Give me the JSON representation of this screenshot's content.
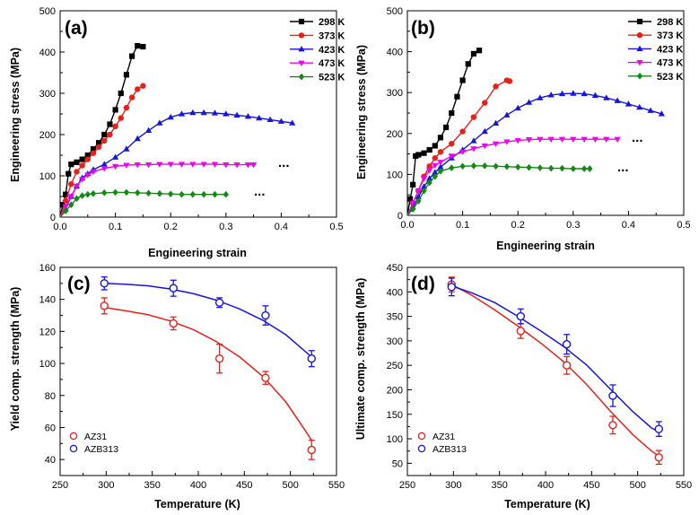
{
  "colors": {
    "k298": "#000000",
    "k373": "#e8201a",
    "k423": "#1515e0",
    "k473": "#f000f0",
    "k523": "#108a10",
    "az31": "#e8201a",
    "azb313": "#1515e0"
  },
  "chart_data": [
    {
      "type": "line",
      "label": "(a)",
      "xlabel": "Engineering strain",
      "ylabel": "Engineering stress (MPa)",
      "xlim": [
        0,
        0.5
      ],
      "ylim": [
        0,
        500
      ],
      "xticks": [
        "0.0",
        "0.1",
        "0.2",
        "0.3",
        "0.4",
        "0.5"
      ],
      "yticks": [
        "0",
        "100",
        "200",
        "300",
        "400",
        "500"
      ],
      "legend": "top-right",
      "ellipsis": "...",
      "series": [
        {
          "name": "298 K",
          "marker": "square",
          "color": "#000000",
          "x": [
            0,
            0.005,
            0.01,
            0.015,
            0.02,
            0.03,
            0.04,
            0.05,
            0.06,
            0.07,
            0.08,
            0.09,
            0.1,
            0.11,
            0.12,
            0.13,
            0.14,
            0.15
          ],
          "y": [
            0,
            30,
            55,
            105,
            128,
            133,
            140,
            150,
            165,
            180,
            200,
            225,
            260,
            300,
            345,
            390,
            415,
            413
          ]
        },
        {
          "name": "373 K",
          "marker": "circle",
          "color": "#e8201a",
          "x": [
            0,
            0.01,
            0.02,
            0.03,
            0.04,
            0.05,
            0.06,
            0.07,
            0.08,
            0.09,
            0.1,
            0.11,
            0.12,
            0.13,
            0.14,
            0.15
          ],
          "y": [
            0,
            40,
            80,
            110,
            125,
            140,
            155,
            170,
            185,
            200,
            220,
            240,
            265,
            290,
            310,
            318
          ]
        },
        {
          "name": "423 K",
          "marker": "triangle-up",
          "color": "#1515e0",
          "x": [
            0,
            0.01,
            0.02,
            0.03,
            0.04,
            0.05,
            0.06,
            0.08,
            0.1,
            0.12,
            0.14,
            0.16,
            0.18,
            0.2,
            0.22,
            0.24,
            0.26,
            0.28,
            0.3,
            0.32,
            0.34,
            0.36,
            0.38,
            0.4,
            0.42
          ],
          "y": [
            0,
            20,
            50,
            75,
            95,
            105,
            115,
            128,
            145,
            165,
            190,
            210,
            228,
            242,
            250,
            253,
            253,
            252,
            250,
            247,
            244,
            240,
            236,
            232,
            228
          ]
        },
        {
          "name": "473 K",
          "marker": "triangle-down",
          "color": "#f000f0",
          "x": [
            0,
            0.01,
            0.02,
            0.03,
            0.04,
            0.05,
            0.06,
            0.08,
            0.1,
            0.12,
            0.14,
            0.16,
            0.18,
            0.2,
            0.22,
            0.24,
            0.26,
            0.28,
            0.3,
            0.32,
            0.34,
            0.35
          ],
          "y": [
            0,
            25,
            50,
            75,
            92,
            102,
            110,
            118,
            123,
            126,
            127,
            127,
            128,
            128,
            128,
            128,
            128,
            128,
            127,
            127,
            127,
            127
          ]
        },
        {
          "name": "523 K",
          "marker": "diamond",
          "color": "#108a10",
          "x": [
            0,
            0.01,
            0.02,
            0.03,
            0.04,
            0.05,
            0.06,
            0.08,
            0.1,
            0.12,
            0.14,
            0.16,
            0.18,
            0.2,
            0.22,
            0.24,
            0.26,
            0.28,
            0.3
          ],
          "y": [
            0,
            15,
            30,
            45,
            52,
            55,
            57,
            59,
            60,
            60,
            59,
            58,
            57,
            56,
            55,
            55,
            55,
            55,
            55
          ]
        }
      ]
    },
    {
      "type": "line",
      "label": "(b)",
      "xlabel": "Engineering strain",
      "ylabel": "Engineering stress (MPa)",
      "xlim": [
        0,
        0.5
      ],
      "ylim": [
        0,
        500
      ],
      "xticks": [
        "0.0",
        "0.1",
        "0.2",
        "0.3",
        "0.4",
        "0.5"
      ],
      "yticks": [
        "0",
        "100",
        "200",
        "300",
        "400",
        "500"
      ],
      "legend": "top-right",
      "ellipsis": "...",
      "series": [
        {
          "name": "298 K",
          "marker": "square",
          "color": "#000000",
          "x": [
            0,
            0.005,
            0.01,
            0.015,
            0.02,
            0.03,
            0.04,
            0.05,
            0.06,
            0.07,
            0.08,
            0.09,
            0.1,
            0.11,
            0.12,
            0.13
          ],
          "y": [
            0,
            40,
            75,
            145,
            148,
            152,
            160,
            170,
            190,
            215,
            250,
            290,
            330,
            370,
            395,
            403
          ]
        },
        {
          "name": "373 K",
          "marker": "circle",
          "color": "#e8201a",
          "x": [
            0,
            0.01,
            0.02,
            0.03,
            0.04,
            0.05,
            0.06,
            0.08,
            0.1,
            0.12,
            0.14,
            0.16,
            0.18,
            0.185
          ],
          "y": [
            0,
            30,
            60,
            95,
            120,
            140,
            155,
            175,
            205,
            240,
            275,
            315,
            330,
            328
          ]
        },
        {
          "name": "423 K",
          "marker": "triangle-up",
          "color": "#1515e0",
          "x": [
            0,
            0.01,
            0.02,
            0.03,
            0.04,
            0.05,
            0.06,
            0.08,
            0.1,
            0.12,
            0.14,
            0.16,
            0.18,
            0.2,
            0.22,
            0.24,
            0.26,
            0.28,
            0.3,
            0.32,
            0.34,
            0.36,
            0.38,
            0.4,
            0.42,
            0.44,
            0.46
          ],
          "y": [
            0,
            20,
            45,
            70,
            90,
            105,
            118,
            140,
            160,
            182,
            205,
            225,
            245,
            262,
            276,
            287,
            294,
            297,
            298,
            297,
            293,
            287,
            280,
            272,
            264,
            256,
            248
          ]
        },
        {
          "name": "473 K",
          "marker": "triangle-down",
          "color": "#f000f0",
          "x": [
            0,
            0.01,
            0.02,
            0.03,
            0.04,
            0.05,
            0.06,
            0.08,
            0.1,
            0.12,
            0.14,
            0.16,
            0.18,
            0.2,
            0.22,
            0.24,
            0.26,
            0.28,
            0.3,
            0.32,
            0.34,
            0.36,
            0.38
          ],
          "y": [
            0,
            30,
            60,
            90,
            110,
            122,
            130,
            145,
            155,
            163,
            170,
            175,
            180,
            183,
            185,
            186,
            186,
            186,
            186,
            186,
            186,
            186,
            186
          ]
        },
        {
          "name": "523 K",
          "marker": "diamond",
          "color": "#108a10",
          "x": [
            0,
            0.01,
            0.02,
            0.03,
            0.04,
            0.05,
            0.06,
            0.08,
            0.1,
            0.12,
            0.14,
            0.16,
            0.18,
            0.2,
            0.22,
            0.24,
            0.26,
            0.28,
            0.3,
            0.32,
            0.33
          ],
          "y": [
            0,
            15,
            35,
            60,
            80,
            95,
            108,
            116,
            120,
            121,
            121,
            120,
            119,
            118,
            117,
            116,
            115,
            115,
            114,
            114,
            114
          ]
        }
      ]
    },
    {
      "type": "scatter",
      "label": "(c)",
      "xlabel": "Temperature (K)",
      "ylabel": "Yield comp. strength (MPa)",
      "xlim": [
        250,
        550
      ],
      "ylim": [
        30,
        160
      ],
      "xticks": [
        "250",
        "300",
        "350",
        "400",
        "450",
        "500",
        "550"
      ],
      "yticks": [
        "40",
        "60",
        "80",
        "100",
        "120",
        "140",
        "160"
      ],
      "legend": "bottom-left",
      "series": [
        {
          "name": "AZ31",
          "color": "#e8201a",
          "x": [
            298,
            373,
            423,
            473,
            523
          ],
          "y": [
            136,
            125,
            103,
            91,
            46
          ],
          "err": [
            5,
            4,
            9,
            4,
            6
          ],
          "fit": {
            "x": [
              298,
              320,
              345,
              370,
              395,
              420,
              445,
              470,
              495,
              515,
              523
            ],
            "y": [
              135,
              133,
              130.5,
              126.5,
              121,
              113.5,
              104,
              92,
              76,
              59,
              52
            ]
          }
        },
        {
          "name": "AZB313",
          "color": "#1515e0",
          "x": [
            298,
            373,
            423,
            473,
            523
          ],
          "y": [
            150,
            147,
            138,
            130,
            103
          ],
          "err": [
            4,
            5,
            3,
            6,
            5
          ],
          "fit": {
            "x": [
              298,
              320,
              345,
              370,
              395,
              420,
              445,
              470,
              495,
              515,
              523
            ],
            "y": [
              150,
              149.5,
              148.5,
              146.5,
              143.5,
              139.5,
              134,
              127,
              118,
              108,
              104
            ]
          }
        }
      ]
    },
    {
      "type": "scatter",
      "label": "(d)",
      "xlabel": "Temperature (K)",
      "ylabel": "Ultimate comp. strength (MPa)",
      "xlim": [
        250,
        550
      ],
      "ylim": [
        25,
        450
      ],
      "xticks": [
        "250",
        "300",
        "350",
        "400",
        "450",
        "500",
        "550"
      ],
      "yticks": [
        "50",
        "100",
        "150",
        "200",
        "250",
        "300",
        "350",
        "400",
        "450"
      ],
      "legend": "bottom-left",
      "series": [
        {
          "name": "AZ31",
          "color": "#e8201a",
          "x": [
            298,
            373,
            423,
            473,
            523
          ],
          "y": [
            415,
            320,
            250,
            128,
            62
          ],
          "err": [
            15,
            15,
            18,
            18,
            14
          ],
          "fit": {
            "x": [
              298,
              320,
              345,
              370,
              395,
              420,
              445,
              470,
              495,
              515,
              523
            ],
            "y": [
              415,
              393,
              363,
              330,
              295,
              257,
              210,
              157,
              108,
              75,
              65
            ]
          }
        },
        {
          "name": "AZB313",
          "color": "#1515e0",
          "x": [
            298,
            373,
            423,
            473,
            523
          ],
          "y": [
            410,
            350,
            293,
            188,
            120
          ],
          "err": [
            18,
            15,
            20,
            22,
            15
          ],
          "fit": {
            "x": [
              298,
              320,
              345,
              370,
              395,
              420,
              445,
              470,
              495,
              515,
              523
            ],
            "y": [
              412,
              398,
              378,
              350,
              320,
              288,
              250,
              202,
              155,
              122,
              114
            ]
          }
        }
      ]
    }
  ]
}
